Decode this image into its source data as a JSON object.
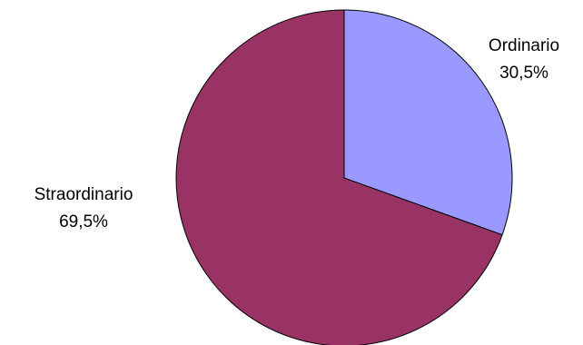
{
  "chart_data": {
    "type": "pie",
    "title": "",
    "slices": [
      {
        "label": "Ordinario",
        "value": 30.5,
        "value_label": "30,5%",
        "color": "#9999FF"
      },
      {
        "label": "Straordinario",
        "value": 69.5,
        "value_label": "69,5%",
        "color": "#993366"
      }
    ],
    "start_angle": "12 o'clock",
    "direction": "clockwise",
    "legend": "none",
    "border_color": "#000000"
  }
}
